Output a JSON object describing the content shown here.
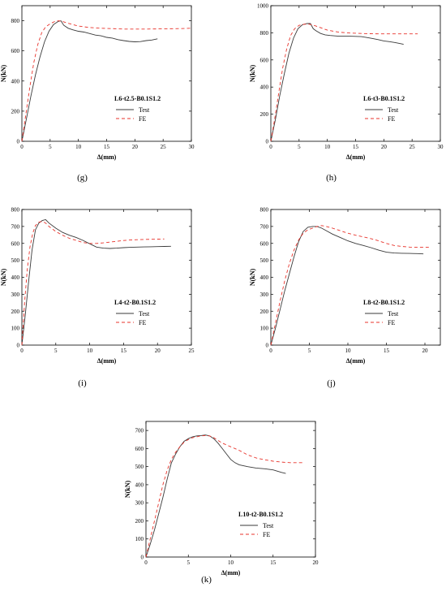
{
  "colors": {
    "test": "#3a3a3a",
    "fe": "#e8332b",
    "axis": "#000000"
  },
  "chart_data": [
    {
      "type": "line",
      "caption": "(g)",
      "specimen": "L6-t2.5-B0.1S1.2",
      "xlabel": "Δ(mm)",
      "ylabel": "N(kN)",
      "xlim": [
        0,
        30
      ],
      "ylim": [
        0,
        1000
      ],
      "xticks": [
        0,
        5,
        10,
        15,
        20,
        25,
        30
      ],
      "yticks": [
        0,
        200,
        400,
        600,
        800
      ],
      "series": [
        {
          "name": "Test",
          "style": "solid",
          "x": [
            0,
            0.8,
            1.6,
            2.4,
            3.2,
            4.0,
            4.8,
            5.6,
            6.4,
            6.9,
            7.4,
            8.2,
            9.0,
            10,
            11,
            12,
            13,
            14,
            15,
            16,
            17,
            18,
            19,
            20,
            21,
            22,
            23,
            24
          ],
          "y": [
            0,
            150,
            300,
            440,
            560,
            660,
            730,
            775,
            795,
            800,
            770,
            750,
            740,
            730,
            725,
            715,
            705,
            700,
            690,
            685,
            675,
            668,
            663,
            660,
            662,
            668,
            672,
            680
          ]
        },
        {
          "name": "FE",
          "style": "dashed",
          "x": [
            0,
            0.7,
            1.4,
            2.1,
            2.8,
            3.5,
            4.2,
            5.0,
            5.8,
            6.5,
            7.2,
            8.0,
            9.0,
            10,
            12,
            14,
            16,
            18,
            20,
            22,
            24,
            26,
            28,
            30
          ],
          "y": [
            0,
            180,
            360,
            520,
            640,
            720,
            760,
            780,
            795,
            800,
            795,
            785,
            775,
            765,
            755,
            750,
            748,
            745,
            745,
            745,
            746,
            747,
            748,
            750
          ]
        }
      ]
    },
    {
      "type": "line",
      "caption": "(h)",
      "specimen": "L6-t3-B0.1S1.2",
      "xlabel": "Δ(mm)",
      "ylabel": "N(kN)",
      "xlim": [
        0,
        30
      ],
      "ylim": [
        0,
        1000
      ],
      "xticks": [
        0,
        5,
        10,
        15,
        20,
        25,
        30
      ],
      "yticks": [
        0,
        200,
        400,
        600,
        800,
        1000
      ],
      "series": [
        {
          "name": "Test",
          "style": "solid",
          "x": [
            0,
            0.8,
            1.6,
            2.4,
            3.2,
            4.0,
            4.8,
            5.6,
            6.4,
            7.0,
            7.5,
            8.0,
            8.8,
            9.6,
            10.5,
            12,
            14,
            16,
            17,
            18,
            19,
            20,
            21,
            22,
            23,
            23.5
          ],
          "y": [
            0,
            160,
            340,
            500,
            650,
            760,
            830,
            860,
            868,
            868,
            830,
            815,
            795,
            785,
            780,
            775,
            775,
            772,
            765,
            758,
            750,
            740,
            735,
            728,
            720,
            715
          ]
        },
        {
          "name": "FE",
          "style": "dashed",
          "x": [
            0,
            0.7,
            1.4,
            2.1,
            2.8,
            3.5,
            4.2,
            5.0,
            5.8,
            6.5,
            7.2,
            8.0,
            9.0,
            10,
            12,
            14,
            16,
            18,
            20,
            22,
            24,
            26
          ],
          "y": [
            0,
            170,
            360,
            540,
            680,
            780,
            830,
            855,
            862,
            865,
            860,
            850,
            835,
            820,
            805,
            798,
            795,
            793,
            792,
            792,
            792,
            792
          ]
        }
      ]
    },
    {
      "type": "line",
      "caption": "(i)",
      "specimen": "L4-t2-B0.1S1.2",
      "xlabel": "Δ(mm)",
      "ylabel": "N(kN)",
      "xlim": [
        0,
        25
      ],
      "ylim": [
        0,
        800
      ],
      "xticks": [
        0,
        5,
        10,
        15,
        20,
        25
      ],
      "yticks": [
        0,
        100,
        200,
        300,
        400,
        500,
        600,
        700,
        800
      ],
      "series": [
        {
          "name": "Test",
          "style": "solid",
          "x": [
            0,
            0.5,
            1.0,
            1.5,
            2.0,
            2.5,
            3.0,
            3.5,
            4.0,
            5.0,
            6.0,
            7.0,
            8.0,
            9.0,
            10,
            11,
            12,
            13,
            14,
            15,
            16,
            17,
            18,
            19,
            20,
            21,
            22
          ],
          "y": [
            0,
            180,
            380,
            560,
            680,
            720,
            735,
            740,
            720,
            690,
            665,
            648,
            635,
            618,
            598,
            578,
            572,
            570,
            572,
            575,
            577,
            578,
            579,
            580,
            581,
            582,
            583
          ]
        },
        {
          "name": "FE",
          "style": "dashed",
          "x": [
            0,
            0.4,
            0.8,
            1.2,
            1.6,
            2.0,
            2.5,
            3.0,
            3.5,
            4.0,
            5.0,
            6.0,
            7.0,
            8.0,
            9.0,
            10,
            11,
            12,
            13,
            14,
            15,
            16,
            17,
            18,
            19,
            20,
            21
          ],
          "y": [
            0,
            250,
            450,
            580,
            660,
            705,
            725,
            730,
            720,
            700,
            670,
            648,
            630,
            618,
            605,
            600,
            600,
            603,
            608,
            612,
            617,
            620,
            622,
            623,
            624,
            625,
            626
          ]
        }
      ]
    },
    {
      "type": "line",
      "caption": "(j)",
      "specimen": "L8-t2-B0.1S1.2",
      "xlabel": "Δ(mm)",
      "ylabel": "N(kN)",
      "xlim": [
        0,
        22
      ],
      "ylim": [
        0,
        800
      ],
      "xticks": [
        0,
        5,
        10,
        15,
        20
      ],
      "yticks": [
        0,
        100,
        200,
        300,
        400,
        500,
        600,
        700,
        800
      ],
      "series": [
        {
          "name": "Test",
          "style": "solid",
          "x": [
            0,
            0.6,
            1.2,
            1.8,
            2.4,
            3.0,
            3.6,
            4.2,
            4.8,
            5.4,
            6.0,
            6.6,
            7.2,
            8.0,
            9.0,
            10,
            11,
            12,
            13,
            14,
            15,
            16,
            17,
            18,
            19,
            19.8
          ],
          "y": [
            0,
            100,
            210,
            320,
            420,
            520,
            610,
            670,
            695,
            700,
            700,
            690,
            675,
            655,
            635,
            615,
            600,
            588,
            575,
            560,
            548,
            543,
            542,
            541,
            540,
            538
          ]
        },
        {
          "name": "FE",
          "style": "dashed",
          "x": [
            0,
            0.6,
            1.2,
            1.8,
            2.4,
            3.0,
            3.6,
            4.2,
            4.8,
            5.4,
            6.0,
            6.6,
            7.2,
            8.0,
            9.0,
            10,
            11,
            12,
            13,
            14,
            15,
            16,
            17,
            18,
            19,
            20.5
          ],
          "y": [
            0,
            130,
            260,
            380,
            480,
            560,
            620,
            660,
            680,
            690,
            700,
            705,
            700,
            690,
            675,
            660,
            648,
            638,
            628,
            615,
            600,
            588,
            582,
            578,
            577,
            577
          ]
        }
      ]
    },
    {
      "type": "line",
      "caption": "(k)",
      "specimen": "L10-t2-B0.1S1.2",
      "xlabel": "Δ(mm)",
      "ylabel": "N(kN)",
      "xlim": [
        0,
        20
      ],
      "ylim": [
        0,
        700
      ],
      "xticks": [
        0,
        5,
        10,
        15,
        20
      ],
      "yticks": [
        0,
        100,
        200,
        300,
        400,
        500,
        600,
        700
      ],
      "series": [
        {
          "name": "Test",
          "style": "solid",
          "x": [
            0,
            0.5,
            1.0,
            1.5,
            2.0,
            2.5,
            3.0,
            3.5,
            4.0,
            4.5,
            5.0,
            5.5,
            6.0,
            6.5,
            7.0,
            7.5,
            8.0,
            8.5,
            9.0,
            9.5,
            10,
            10.5,
            11,
            12,
            13,
            14,
            15,
            16,
            16.5
          ],
          "y": [
            0,
            70,
            150,
            240,
            330,
            430,
            520,
            570,
            610,
            640,
            655,
            665,
            670,
            672,
            675,
            670,
            655,
            630,
            600,
            570,
            540,
            522,
            510,
            500,
            492,
            488,
            482,
            468,
            462
          ]
        },
        {
          "name": "FE",
          "style": "dashed",
          "x": [
            0,
            0.5,
            1.0,
            1.5,
            2.0,
            2.5,
            3.0,
            3.5,
            4.0,
            4.5,
            5.0,
            5.5,
            6.0,
            6.5,
            7.0,
            7.5,
            8.0,
            8.5,
            9.0,
            10,
            11,
            12,
            13,
            14,
            15,
            16,
            17,
            18.5
          ],
          "y": [
            0,
            100,
            200,
            300,
            400,
            480,
            540,
            580,
            610,
            635,
            650,
            660,
            665,
            670,
            672,
            670,
            660,
            645,
            630,
            610,
            590,
            565,
            548,
            538,
            530,
            525,
            522,
            522
          ]
        }
      ]
    }
  ]
}
